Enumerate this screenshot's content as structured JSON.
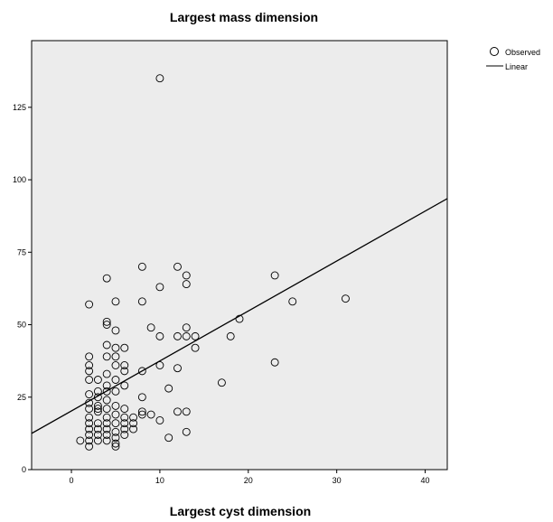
{
  "chart_data": {
    "type": "scatter",
    "title": "Largest mass dimension",
    "xlabel": "Largest cyst dimension",
    "ylabel": "",
    "xlim": [
      -4.5,
      42.5
    ],
    "ylim": [
      0,
      148
    ],
    "x_ticks": [
      0,
      10,
      20,
      30,
      40
    ],
    "y_ticks": [
      0,
      25,
      50,
      75,
      100,
      125
    ],
    "grid": false,
    "background": "#ececec",
    "legend_position": "right",
    "series": [
      {
        "name": "Observed",
        "kind": "points",
        "marker": "open-circle",
        "points": [
          [
            10,
            135
          ],
          [
            8,
            70
          ],
          [
            12,
            70
          ],
          [
            13,
            67
          ],
          [
            23,
            67
          ],
          [
            4,
            66
          ],
          [
            13,
            64
          ],
          [
            10,
            63
          ],
          [
            2,
            57
          ],
          [
            5,
            58
          ],
          [
            8,
            58
          ],
          [
            25,
            58
          ],
          [
            31,
            59
          ],
          [
            19,
            52
          ],
          [
            4,
            51
          ],
          [
            4,
            50
          ],
          [
            9,
            49
          ],
          [
            13,
            49
          ],
          [
            5,
            48
          ],
          [
            10,
            46
          ],
          [
            12,
            46
          ],
          [
            13,
            46
          ],
          [
            14,
            46
          ],
          [
            18,
            46
          ],
          [
            4,
            43
          ],
          [
            5,
            42
          ],
          [
            6,
            42
          ],
          [
            14,
            42
          ],
          [
            2,
            39
          ],
          [
            4,
            39
          ],
          [
            5,
            39
          ],
          [
            6,
            36
          ],
          [
            23,
            37
          ],
          [
            2,
            36
          ],
          [
            5,
            36
          ],
          [
            2,
            34
          ],
          [
            4,
            33
          ],
          [
            6,
            34
          ],
          [
            8,
            34
          ],
          [
            10,
            36
          ],
          [
            12,
            35
          ],
          [
            2,
            31
          ],
          [
            3,
            31
          ],
          [
            4,
            29
          ],
          [
            5,
            31
          ],
          [
            6,
            29
          ],
          [
            3,
            27
          ],
          [
            5,
            27
          ],
          [
            11,
            28
          ],
          [
            17,
            30
          ],
          [
            2,
            26
          ],
          [
            4,
            24
          ],
          [
            8,
            25
          ],
          [
            2,
            23
          ],
          [
            3,
            22
          ],
          [
            4,
            21
          ],
          [
            5,
            22
          ],
          [
            3,
            20
          ],
          [
            5,
            19
          ],
          [
            6,
            18
          ],
          [
            7,
            18
          ],
          [
            8,
            20
          ],
          [
            8,
            19
          ],
          [
            9,
            19
          ],
          [
            12,
            20
          ],
          [
            13,
            20
          ],
          [
            10,
            17
          ],
          [
            2,
            18
          ],
          [
            2,
            16
          ],
          [
            3,
            16
          ],
          [
            4,
            16
          ],
          [
            5,
            16
          ],
          [
            6,
            16
          ],
          [
            7,
            16
          ],
          [
            2,
            14
          ],
          [
            3,
            14
          ],
          [
            4,
            14
          ],
          [
            5,
            13
          ],
          [
            6,
            14
          ],
          [
            7,
            14
          ],
          [
            2,
            12
          ],
          [
            3,
            12
          ],
          [
            4,
            12
          ],
          [
            5,
            11
          ],
          [
            6,
            12
          ],
          [
            13,
            13
          ],
          [
            1,
            10
          ],
          [
            2,
            10
          ],
          [
            3,
            10
          ],
          [
            4,
            10
          ],
          [
            5,
            9
          ],
          [
            11,
            11
          ],
          [
            2,
            8
          ],
          [
            5,
            8
          ],
          [
            3,
            21
          ],
          [
            4,
            18
          ],
          [
            2,
            21
          ],
          [
            3,
            25
          ],
          [
            6,
            21
          ],
          [
            4,
            27
          ]
        ]
      },
      {
        "name": "Linear",
        "kind": "line",
        "points": [
          [
            -4.5,
            12.5
          ],
          [
            42.5,
            93.5
          ]
        ]
      }
    ]
  }
}
